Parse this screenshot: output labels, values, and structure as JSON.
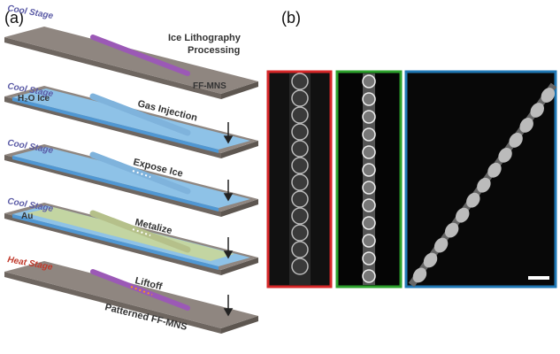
{
  "panel_a": {
    "label": "(a)",
    "title_line1": "Ice Lithography",
    "title_line2": "Processing",
    "ff_mns": "FF-MNS",
    "h2o_ice": "H₂O Ice",
    "au": "Au",
    "patterned": "Patterned FF-MNS",
    "steps": [
      {
        "stage": "Cool Stage"
      },
      {
        "stage": "Cool Stage",
        "label": "Gas Injection"
      },
      {
        "stage": "Cool Stage",
        "label": "Expose Ice"
      },
      {
        "stage": "Cool Stage",
        "label": "Metalize"
      },
      {
        "stage": "Heat Stage",
        "label": "Liftoff"
      }
    ]
  },
  "panel_b": {
    "label": "(b)"
  }
}
